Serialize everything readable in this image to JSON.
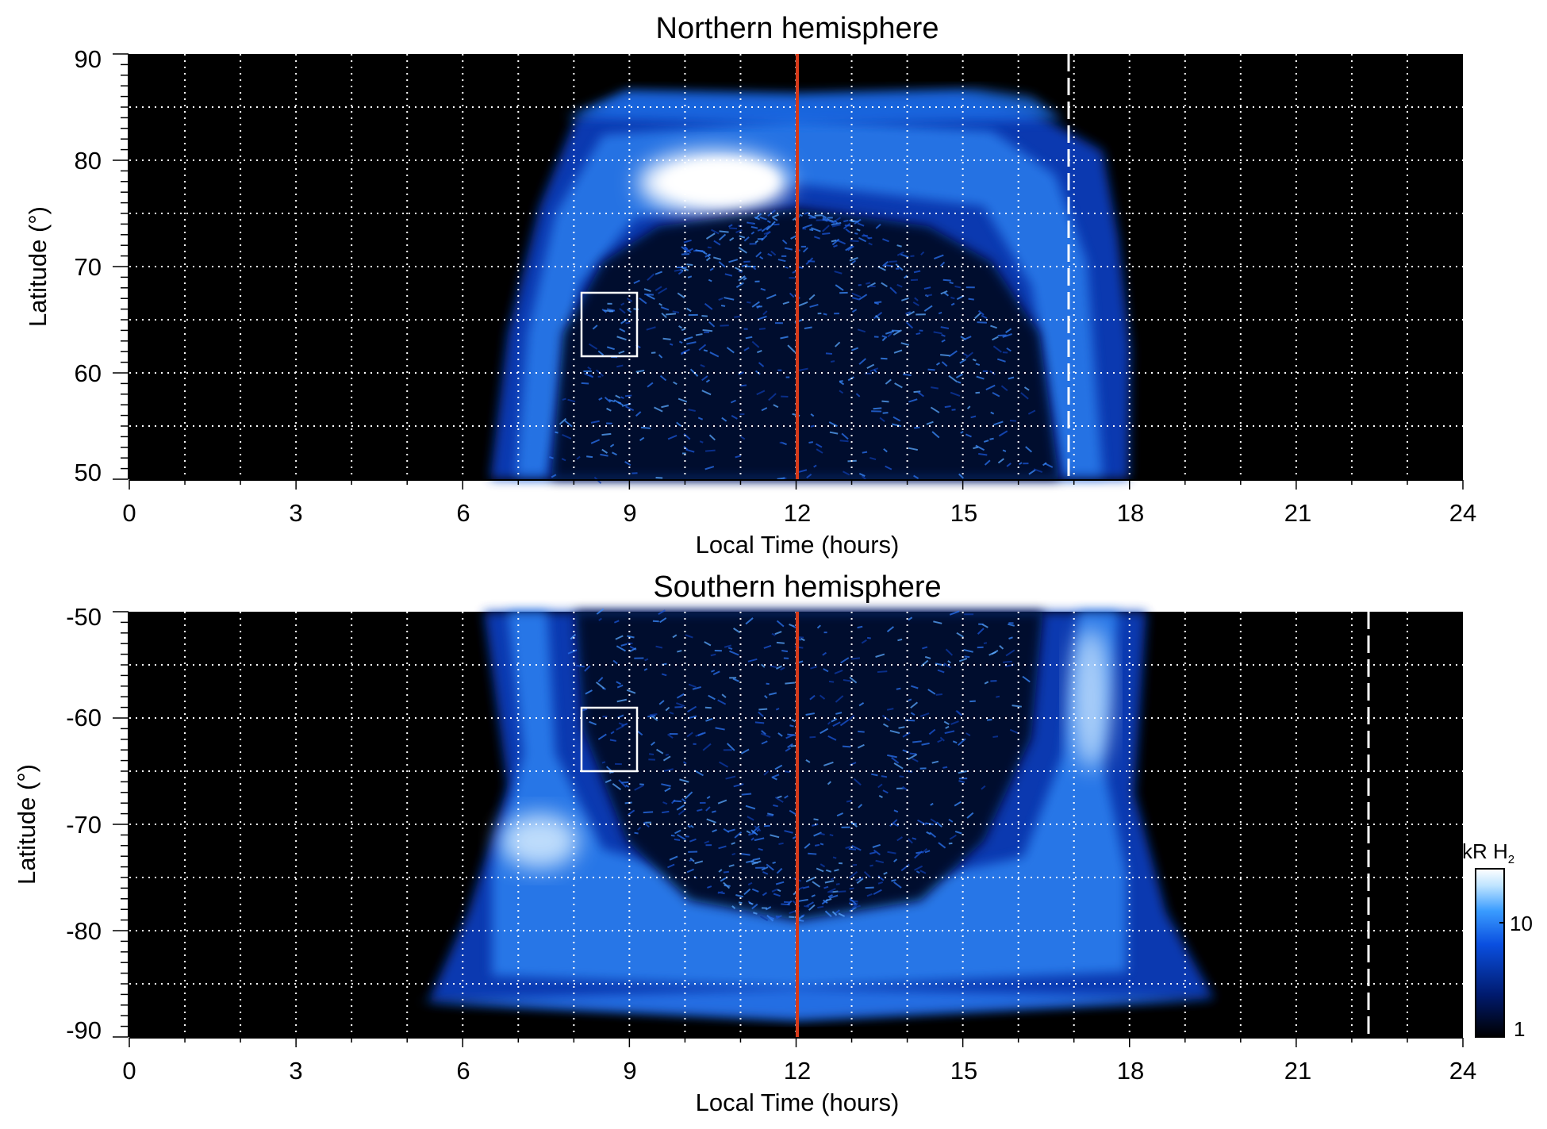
{
  "chart_data": [
    {
      "type": "heatmap",
      "title": "Northern hemisphere",
      "xlabel": "Local Time (hours)",
      "ylabel": "Latitude (°)",
      "xlim": [
        0,
        24
      ],
      "ylim": [
        50,
        90
      ],
      "xticks": [
        "0",
        "3",
        "6",
        "9",
        "12",
        "15",
        "18",
        "21",
        "24"
      ],
      "yticks": [
        "50",
        "60",
        "70",
        "80",
        "90"
      ],
      "grid": true,
      "coverage": {
        "lt_start": 6.5,
        "lt_end": 18.0,
        "lat_edge": 85.5
      },
      "dark_region": {
        "lt_center": 12.0,
        "lt_half_width": 4.8,
        "lat_top": 75.0
      },
      "auroral_oval": [
        {
          "lt": 6.6,
          "lat": 50
        },
        {
          "lt": 7.2,
          "lat": 60
        },
        {
          "lt": 8.5,
          "lat": 70
        },
        {
          "lt": 10.5,
          "lat": 75
        },
        {
          "lt": 12.0,
          "lat": 76
        },
        {
          "lt": 14.5,
          "lat": 75
        },
        {
          "lt": 16.0,
          "lat": 70
        },
        {
          "lt": 16.9,
          "lat": 60
        },
        {
          "lt": 17.3,
          "lat": 50
        }
      ],
      "bright_spot": {
        "lt_start": 9.5,
        "lt_end": 11.5,
        "lat_low": 75,
        "lat_high": 80,
        "intensity_kR": 30
      },
      "noon_line": {
        "lt": 12,
        "color": "#d63a1a"
      },
      "dashed_line": {
        "lt": 16.9,
        "color": "#ffffff"
      },
      "box": {
        "lt_start": 8.1,
        "lt_end": 9.1,
        "lat_low": 61.5,
        "lat_high": 67.5
      }
    },
    {
      "type": "heatmap",
      "title": "Southern hemisphere",
      "xlabel": "Local Time (hours)",
      "ylabel": "Latitude (°)",
      "xlim": [
        0,
        24
      ],
      "ylim": [
        -90,
        -50
      ],
      "xticks": [
        "0",
        "3",
        "6",
        "9",
        "12",
        "15",
        "18",
        "21",
        "24"
      ],
      "yticks": [
        "-50",
        "-60",
        "-70",
        "-80",
        "-90"
      ],
      "grid": true,
      "coverage": {
        "lt_start": 5.2,
        "lt_end": 19.6,
        "lat_edge": -89.0
      },
      "dark_region": {
        "lt_center": 12.0,
        "lt_half_width": 4.4,
        "lat_bottom": -79.0
      },
      "auroral_oval": [
        {
          "lt": 7.8,
          "lat": -50
        },
        {
          "lt": 8.2,
          "lat": -60
        },
        {
          "lt": 9.2,
          "lat": -70
        },
        {
          "lt": 11.0,
          "lat": -77
        },
        {
          "lt": 12.0,
          "lat": -78
        },
        {
          "lt": 13.5,
          "lat": -77
        },
        {
          "lt": 15.5,
          "lat": -70
        },
        {
          "lt": 16.4,
          "lat": -60
        },
        {
          "lt": 16.8,
          "lat": -50
        }
      ],
      "noon_line": {
        "lt": 12,
        "color": "#d63a1a"
      },
      "dashed_line": {
        "lt": 22.3,
        "color": "#ffffff"
      },
      "box": {
        "lt_start": 8.1,
        "lt_end": 9.1,
        "lat_low": -65,
        "lat_high": -59
      }
    }
  ],
  "colorbar": {
    "title_main": "kR H",
    "title_sub": "2",
    "scale": "log",
    "range": [
      1,
      30
    ],
    "tick_labels": [
      "1",
      "10"
    ],
    "tick_values": [
      1,
      10
    ],
    "colors": [
      "#000000",
      "#001a6e",
      "#0a4fe0",
      "#3a9cff",
      "#bfe4ff",
      "#ffffff"
    ]
  }
}
